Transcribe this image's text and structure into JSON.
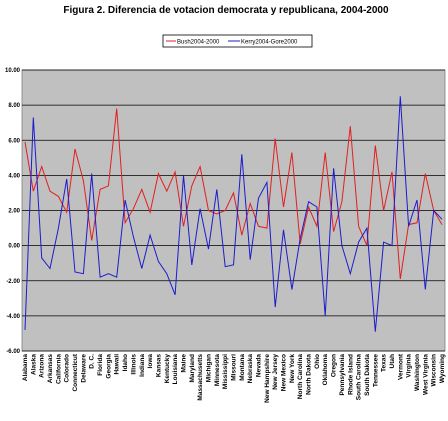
{
  "chart_data": {
    "type": "line",
    "title": "Figura 2. Diferencia de votacion democrata y republicana, 2004-2000",
    "xlabel": "",
    "ylabel": "",
    "ylim": [
      -6,
      10
    ],
    "yticks": [
      "-6.00",
      "-4.00",
      "-2.00",
      "0.00",
      "2.00",
      "4.00",
      "6.00",
      "8.00",
      "10.00"
    ],
    "grid": true,
    "legend_position": "top-right",
    "plot_background": "#c0c0c0",
    "categories": [
      "Alabama",
      "Alaska",
      "Arizona",
      "Arkansas",
      "California",
      "Colorado",
      "Connecticut",
      "Delaware",
      "D. C.",
      "Florida",
      "Georgia",
      "Hawaii",
      "Idaho",
      "Illinois",
      "Indiana",
      "Iowa",
      "Kansas",
      "Kentucky",
      "Louisiana",
      "Maine",
      "Maryland",
      "Massachusetts",
      "Michigan",
      "Minnesota",
      "Mississippi",
      "Missouri",
      "Montana",
      "Nebraska",
      "Nevada",
      "New Hampshire",
      "New Jersey",
      "New Mexico",
      "New York",
      "North Carolina",
      "North Dakota",
      "Ohio",
      "Oklahoma",
      "Oregon",
      "Pennsylvania",
      "Rhode Island",
      "South Carolina",
      "South Dakota",
      "Tennessee",
      "Texas",
      "Utah",
      "Vermont",
      "Virginia",
      "Washington",
      "West Virginia",
      "Wisconsin",
      "Wyoming"
    ],
    "series": [
      {
        "name": "Bush2004-2000",
        "color": "#e02020",
        "values": [
          5.9,
          3.1,
          4.5,
          3.1,
          2.8,
          1.9,
          5.5,
          3.7,
          0.3,
          3.2,
          3.4,
          7.8,
          1.3,
          2.1,
          3.2,
          1.9,
          4.1,
          3.1,
          4.2,
          1.1,
          3.4,
          4.5,
          2.0,
          1.8,
          2.0,
          3.0,
          0.6,
          2.4,
          1.1,
          1.0,
          6.1,
          2.2,
          5.3,
          0.1,
          2.2,
          1.1,
          5.3,
          0.8,
          2.5,
          6.8,
          1.1,
          0.0,
          5.7,
          2.0,
          4.2,
          -1.9,
          1.2,
          1.3,
          4.1,
          2.0,
          1.2
        ]
      },
      {
        "name": "Kerry2004-Gore2000",
        "color": "#1c1ccc",
        "values": [
          -4.8,
          7.3,
          -0.7,
          -1.3,
          1.0,
          3.8,
          -1.5,
          -1.6,
          4.1,
          -1.8,
          -1.6,
          -1.8,
          2.6,
          0.5,
          -1.3,
          0.6,
          -0.9,
          -1.6,
          -2.8,
          4.0,
          -1.1,
          2.1,
          -0.2,
          3.2,
          -1.2,
          -1.1,
          5.2,
          -0.8,
          2.7,
          3.6,
          -3.5,
          0.9,
          -2.5,
          0.4,
          2.5,
          2.2,
          -4.0,
          4.4,
          0.0,
          -1.6,
          0.2,
          1.0,
          -4.9,
          0.2,
          0.0,
          8.5,
          1.1,
          2.6,
          -2.5,
          2.0,
          1.5
        ]
      }
    ]
  }
}
